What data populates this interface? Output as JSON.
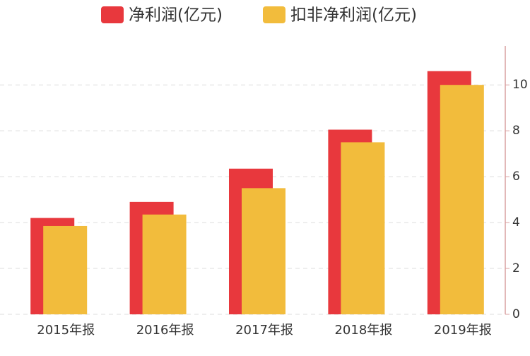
{
  "chart_data": {
    "type": "bar",
    "categories": [
      "2015年报",
      "2016年报",
      "2017年报",
      "2018年报",
      "2019年报"
    ],
    "series": [
      {
        "name": "净利润(亿元)",
        "color": "#e8383d",
        "values": [
          4.2,
          4.9,
          6.35,
          8.05,
          10.6
        ]
      },
      {
        "name": "扣非净利润(亿元)",
        "color": "#f2bc3c",
        "values": [
          3.85,
          4.35,
          5.5,
          7.5,
          10.0
        ]
      }
    ],
    "ylim": [
      0,
      11.7
    ],
    "yticks": [
      0,
      2,
      4,
      6,
      8,
      10
    ],
    "grid": true,
    "legend": "top"
  }
}
